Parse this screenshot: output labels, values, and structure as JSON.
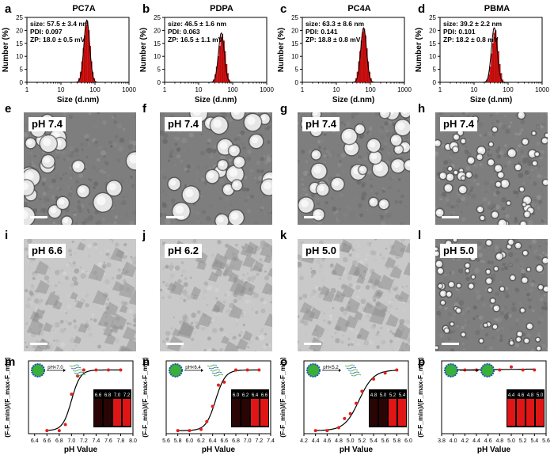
{
  "panel_letters": [
    "a",
    "b",
    "c",
    "d",
    "e",
    "f",
    "g",
    "h",
    "i",
    "j",
    "k",
    "l",
    "m",
    "n",
    "o",
    "p"
  ],
  "chart_data": [
    {
      "type": "bar",
      "title": "PC7A",
      "xlabel": "Size (d.nm)",
      "ylabel": "Number (%)",
      "x_scale": "log",
      "xlim": [
        1,
        1000
      ],
      "ylim": [
        0,
        25
      ],
      "xticks": [
        "1",
        "10",
        "100",
        "1000"
      ],
      "yticks": [
        "0",
        "5",
        "10",
        "15",
        "20",
        "25"
      ],
      "annotations": [
        "size: 57.5 ± 3.4 nm",
        "PDI: 0.097",
        "ZP: 18.0 ± 0.5 mV"
      ],
      "x": [
        34,
        38,
        42,
        46,
        50,
        55,
        60,
        66,
        72,
        79,
        86,
        95
      ],
      "values": [
        1.5,
        4,
        8,
        13,
        18,
        22,
        23.5,
        20,
        14,
        8,
        4,
        1.5
      ],
      "fit": {
        "peak": 57.5,
        "height": 24
      }
    },
    {
      "type": "bar",
      "title": "PDPA",
      "xlabel": "Size (d.nm)",
      "ylabel": "Number (%)",
      "x_scale": "log",
      "xlim": [
        1,
        1000
      ],
      "ylim": [
        0,
        25
      ],
      "xticks": [
        "1",
        "10",
        "100",
        "1000"
      ],
      "yticks": [
        "0",
        "5",
        "10",
        "15",
        "20",
        "25"
      ],
      "annotations": [
        "size: 46.5 ± 1.6 nm",
        "PDI: 0.063",
        "ZP: 16.5 ± 1.1 mV"
      ],
      "x": [
        28,
        31,
        34,
        38,
        42,
        46,
        50,
        55,
        60,
        66,
        72,
        79
      ],
      "values": [
        1,
        3,
        6,
        10,
        14,
        17.5,
        18.5,
        16,
        12,
        7,
        3.5,
        1
      ],
      "fit": {
        "peak": 46.5,
        "height": 19
      }
    },
    {
      "type": "bar",
      "title": "PC4A",
      "xlabel": "Size (d.nm)",
      "ylabel": "Number (%)",
      "x_scale": "log",
      "xlim": [
        1,
        1000
      ],
      "ylim": [
        0,
        25
      ],
      "xticks": [
        "1",
        "10",
        "100",
        "1000"
      ],
      "yticks": [
        "0",
        "5",
        "10",
        "15",
        "20",
        "25"
      ],
      "annotations": [
        "size: 63.3 ± 8.6 nm",
        "PDI: 0.141",
        "ZP: 18.8 ± 0.8 mV"
      ],
      "x": [
        38,
        42,
        46,
        50,
        55,
        60,
        66,
        72,
        79,
        86,
        95,
        104
      ],
      "values": [
        1.5,
        4,
        8,
        12,
        16,
        19.5,
        20.5,
        18,
        13,
        8,
        4,
        1.5
      ],
      "fit": {
        "peak": 63.3,
        "height": 21
      }
    },
    {
      "type": "bar",
      "title": "PBMA",
      "xlabel": "Size (d.nm)",
      "ylabel": "Number (%)",
      "x_scale": "log",
      "xlim": [
        1,
        1000
      ],
      "ylim": [
        0,
        25
      ],
      "xticks": [
        "1",
        "10",
        "100",
        "1000"
      ],
      "yticks": [
        "0",
        "5",
        "10",
        "15",
        "20",
        "25"
      ],
      "annotations": [
        "size: 39.2 ± 2.2 nm",
        "PDI: 0.101",
        "ZP: 18.2 ± 0.8 mV"
      ],
      "x": [
        24,
        27,
        30,
        33,
        36,
        39,
        43,
        47,
        52,
        57,
        63,
        69
      ],
      "values": [
        1,
        3,
        6,
        11,
        15,
        19,
        20,
        17,
        12,
        7,
        3.5,
        1
      ],
      "fit": {
        "peak": 39.2,
        "height": 21
      }
    },
    {
      "type": "scatter",
      "xlabel": "pH Value",
      "ylabel": "(F-F_min)/(F_max-F_min)",
      "xlim": [
        6.3,
        8.0
      ],
      "ylim": [
        -0.05,
        1.15
      ],
      "xticks": [
        "6.4",
        "6.6",
        "6.8",
        "7.0",
        "7.2",
        "7.4",
        "7.6",
        "7.8",
        "8.0"
      ],
      "x": [
        6.6,
        6.8,
        6.9,
        7.0,
        7.1,
        7.2,
        7.4,
        7.6,
        7.8
      ],
      "y": [
        0.0,
        0.0,
        0.1,
        0.6,
        0.9,
        1.0,
        1.0,
        1.0,
        1.0
      ],
      "fit": {
        "mid": 7.0,
        "k": 14
      },
      "transition_label": "pH<7.0",
      "inset_labels": [
        "6.6",
        "6.8",
        "7.0",
        "7.2"
      ]
    },
    {
      "type": "scatter",
      "xlabel": "pH Value",
      "ylabel": "(F-F_min)/(F_max-F_min)",
      "xlim": [
        5.6,
        7.4
      ],
      "ylim": [
        -0.05,
        1.15
      ],
      "xticks": [
        "5.6",
        "5.8",
        "6.0",
        "6.2",
        "6.4",
        "6.6",
        "6.8",
        "7.0",
        "7.2",
        "7.4"
      ],
      "x": [
        5.8,
        6.0,
        6.2,
        6.3,
        6.4,
        6.5,
        6.6,
        6.8,
        7.0,
        7.2
      ],
      "y": [
        0.0,
        0.0,
        0.02,
        0.15,
        0.4,
        0.75,
        0.8,
        1.0,
        1.0,
        1.0
      ],
      "fit": {
        "mid": 6.45,
        "k": 12
      },
      "transition_label": "pH<6.4",
      "inset_labels": [
        "6.0",
        "6.2",
        "6.4",
        "6.6"
      ]
    },
    {
      "type": "scatter",
      "xlabel": "pH Value",
      "ylabel": "(F-F_min)/(F_max-F_min)",
      "xlim": [
        4.2,
        6.0
      ],
      "ylim": [
        -0.05,
        1.15
      ],
      "xticks": [
        "4.2",
        "4.4",
        "4.6",
        "4.8",
        "5.0",
        "5.2",
        "5.4",
        "5.6",
        "5.8",
        "6.0"
      ],
      "x": [
        4.4,
        4.6,
        4.8,
        4.9,
        5.0,
        5.1,
        5.2,
        5.4,
        5.6,
        5.8
      ],
      "y": [
        0.0,
        0.0,
        0.05,
        0.2,
        0.28,
        0.45,
        0.65,
        0.85,
        0.95,
        1.0
      ],
      "fit": {
        "mid": 5.15,
        "k": 8
      },
      "transition_label": "pH<5.2",
      "inset_labels": [
        "4.8",
        "5.0",
        "5.2",
        "5.4"
      ]
    },
    {
      "type": "scatter",
      "xlabel": "pH Value",
      "ylabel": "(F-F_min)/(F_max-F_min)",
      "xlim": [
        3.8,
        5.6
      ],
      "ylim": [
        -0.05,
        1.15
      ],
      "xticks": [
        "3.8",
        "4.0",
        "4.2",
        "4.4",
        "4.6",
        "4.8",
        "5.0",
        "5.2",
        "5.4",
        "5.6"
      ],
      "x": [
        4.0,
        4.2,
        4.4,
        4.6,
        4.8,
        5.0,
        5.2,
        5.4
      ],
      "y": [
        1.0,
        1.0,
        1.0,
        1.0,
        1.0,
        1.05,
        1.0,
        1.0
      ],
      "fit": {
        "line": true
      },
      "transition_label": "",
      "inset_labels": [
        "4.4",
        "4.6",
        "4.8",
        "5.0"
      ]
    }
  ],
  "tem_images": {
    "row1": [
      {
        "ph": "pH 7.4"
      },
      {
        "ph": "pH 7.4"
      },
      {
        "ph": "pH 7.4"
      },
      {
        "ph": "pH 7.4"
      }
    ],
    "row2": [
      {
        "ph": "pH 6.6"
      },
      {
        "ph": "pH 6.2"
      },
      {
        "ph": "pH 5.0"
      },
      {
        "ph": "pH 5.0"
      }
    ]
  },
  "colors": {
    "bar": "#e01010",
    "point": "#e02020",
    "line": "#000000",
    "tem_bg": "#8a8a8a"
  }
}
